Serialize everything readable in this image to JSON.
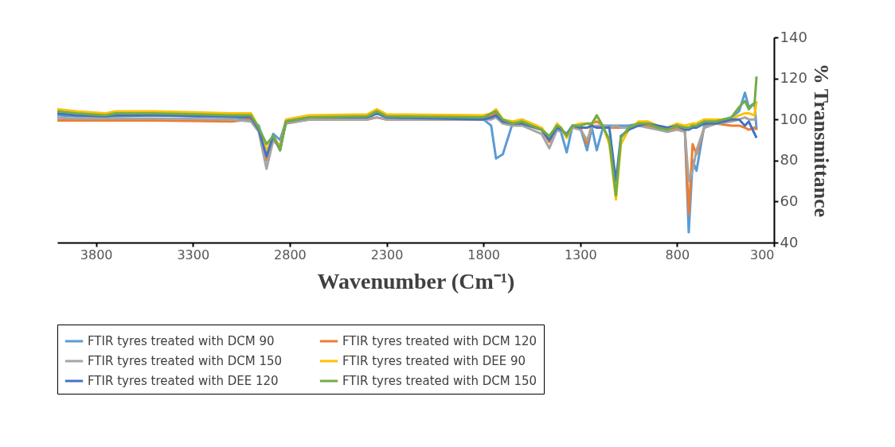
{
  "chart_data": {
    "type": "line",
    "xlabel": "Wavenumber (Cm⁻¹)",
    "ylabel": "% Transmittance",
    "xlim": [
      4000,
      300
    ],
    "xticks": [
      3800,
      3300,
      2800,
      2300,
      1800,
      1300,
      800,
      300
    ],
    "ylim": [
      40,
      140
    ],
    "yticks": [
      40,
      60,
      80,
      100,
      120,
      140
    ],
    "grid": false,
    "legend": "bottom",
    "marker": "none",
    "line_style": "solid",
    "x": [
      4000,
      3900,
      3750,
      3700,
      3500,
      3100,
      3000,
      2960,
      2920,
      2885,
      2850,
      2820,
      2700,
      2400,
      2350,
      2300,
      1800,
      1760,
      1735,
      1700,
      1650,
      1600,
      1500,
      1460,
      1420,
      1400,
      1370,
      1340,
      1300,
      1265,
      1240,
      1215,
      1180,
      1150,
      1116,
      1090,
      1050,
      1000,
      950,
      900,
      850,
      800,
      760,
      740,
      720,
      700,
      660,
      600,
      520,
      480,
      450,
      430,
      400,
      390
    ],
    "series": [
      {
        "name": "FTIR tyres treated with DCM 90",
        "color": "#5b9bd5",
        "values": [
          102,
          101.5,
          101.5,
          101.5,
          102,
          101,
          100,
          97,
          84,
          93,
          90,
          99,
          100,
          100.5,
          103,
          101,
          100,
          97,
          81,
          83,
          98,
          98,
          95,
          90,
          96,
          94,
          84,
          97,
          96,
          85,
          96,
          85,
          97,
          97,
          97,
          97,
          97,
          98,
          97,
          96,
          95,
          96,
          95,
          45,
          80,
          75,
          97,
          99,
          101,
          104,
          113,
          106,
          108,
          95
        ]
      },
      {
        "name": "FTIR tyres treated with DCM 120",
        "color": "#ed7d31",
        "values": [
          99.5,
          99.5,
          99.5,
          99.5,
          99.5,
          99,
          100,
          95,
          80,
          91,
          87,
          98,
          100,
          100,
          101,
          100,
          100,
          102,
          103,
          99,
          98,
          98,
          95,
          89,
          96,
          95,
          92,
          97,
          96,
          88,
          98,
          99,
          97,
          96,
          96,
          96,
          96,
          97,
          97,
          96,
          95,
          96,
          95,
          54,
          88,
          83,
          96,
          98,
          97,
          97,
          96,
          95,
          96,
          95
        ]
      },
      {
        "name": "FTIR tyres treated with DCM 150",
        "color": "#a5a5a5",
        "values": [
          100.8,
          100.5,
          100.5,
          100.5,
          100.5,
          100,
          99,
          94,
          76,
          90,
          86,
          98,
          100,
          100,
          101,
          100,
          100,
          100,
          101,
          98,
          97,
          97,
          93,
          86,
          95,
          94,
          93,
          96,
          95,
          90,
          96,
          97,
          97,
          96,
          97,
          96,
          96,
          97,
          96,
          95,
          94,
          95,
          94,
          70,
          75,
          85,
          96,
          98,
          99,
          100,
          101,
          100,
          100,
          101
        ]
      },
      {
        "name": "FTIR tyres treated with DEE 90",
        "color": "#ffc000",
        "values": [
          105,
          104,
          103,
          104,
          104,
          103,
          103,
          96,
          85,
          92,
          86,
          100,
          102,
          102.5,
          105,
          102.5,
          102,
          103,
          105,
          100,
          99,
          100,
          96,
          91,
          98,
          96,
          91,
          97,
          98,
          98,
          97,
          102,
          96,
          88,
          61,
          88,
          95,
          99,
          99,
          97,
          96,
          98,
          97,
          97.5,
          98,
          98,
          100,
          100,
          100,
          102,
          103,
          103,
          102,
          109
        ]
      },
      {
        "name": "FTIR tyres treated with DEE 120",
        "color": "#4472c4",
        "values": [
          103,
          102,
          101.5,
          102,
          102,
          101.5,
          101,
          95,
          82,
          92,
          85,
          99,
          101,
          101,
          103,
          101,
          100,
          101,
          102,
          99,
          98,
          98,
          95,
          90,
          96,
          95,
          93,
          97,
          96,
          96,
          97,
          96,
          96,
          96,
          70,
          92,
          95,
          97,
          98,
          97,
          96,
          97,
          95,
          95,
          96,
          96,
          98,
          98,
          100,
          100,
          97,
          99,
          93,
          91
        ]
      },
      {
        "name": "FTIR tyres treated with DCM 150",
        "color": "#70ad47",
        "values": [
          104,
          103,
          102,
          103,
          103,
          102,
          102,
          96,
          88,
          92,
          85,
          99,
          101,
          101.5,
          104,
          101.5,
          101,
          103,
          104,
          100,
          98,
          99,
          95,
          92,
          97,
          96,
          92,
          97,
          97,
          98,
          98,
          102,
          96,
          90,
          63,
          91,
          96,
          98,
          98,
          96,
          95,
          97,
          96,
          96,
          97,
          97,
          99,
          99,
          101,
          106,
          109,
          105,
          108,
          121
        ]
      }
    ]
  }
}
